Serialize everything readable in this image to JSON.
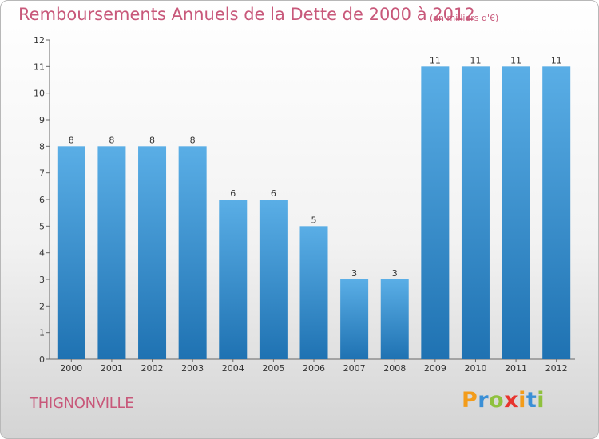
{
  "header": {
    "title": "Remboursements Annuels de la Dette de 2000 à 2012",
    "subtitle": "(en milliers d'€)"
  },
  "footer": {
    "commune": "THIGNONVILLE",
    "logo_letters": [
      "P",
      "r",
      "o",
      "x",
      "i",
      "t",
      "i"
    ],
    "logo_colors": [
      "#f39c1a",
      "#3a8fd6",
      "#8fc13e",
      "#e8342e",
      "#f39c1a",
      "#3a8fd6",
      "#8fc13e"
    ]
  },
  "colors": {
    "bar_top": "#5aaee6",
    "bar_bottom": "#1f72b2",
    "title": "#c8587a"
  },
  "chart_data": {
    "type": "bar",
    "title": "Remboursements Annuels de la Dette de 2000 à 2012",
    "subtitle": "(en milliers d'€)",
    "categories": [
      "2000",
      "2001",
      "2002",
      "2003",
      "2004",
      "2005",
      "2006",
      "2007",
      "2008",
      "2009",
      "2010",
      "2011",
      "2012"
    ],
    "values": [
      8,
      8,
      8,
      8,
      6,
      6,
      5,
      3,
      3,
      11,
      11,
      11,
      11
    ],
    "data_labels": [
      "8",
      "8",
      "8",
      "8",
      "6",
      "6",
      "5",
      "3",
      "3",
      "11",
      "11",
      "11",
      "11"
    ],
    "ylim": [
      0,
      12
    ],
    "yticks": [
      "0",
      "1",
      "2",
      "3",
      "4",
      "5",
      "6",
      "7",
      "8",
      "9",
      "10",
      "11",
      "12"
    ],
    "xlabel": "",
    "ylabel": "",
    "grid": false,
    "legend": "none"
  }
}
